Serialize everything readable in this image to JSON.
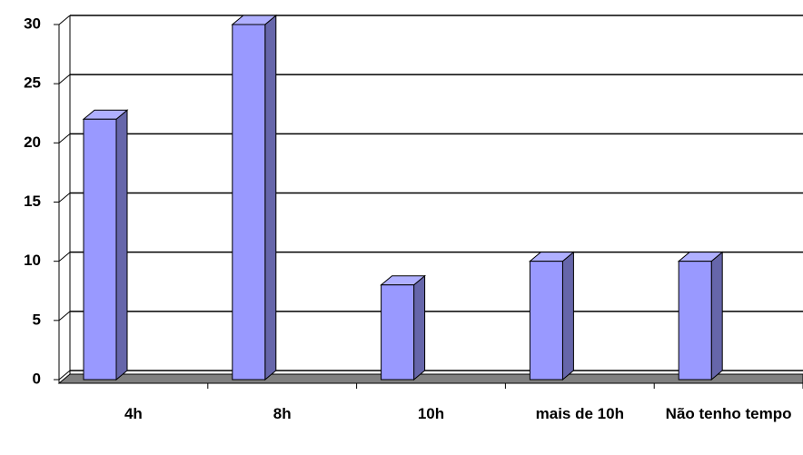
{
  "chart_data": {
    "type": "bar",
    "categories": [
      "4h",
      "8h",
      "10h",
      "mais de 10h",
      "Não tenho tempo"
    ],
    "values": [
      22,
      30,
      8,
      10,
      10
    ],
    "color": "#9999ff",
    "ylim": [
      0,
      30
    ],
    "yticks": [
      0,
      5,
      10,
      15,
      20,
      25,
      30
    ],
    "grid": true
  }
}
